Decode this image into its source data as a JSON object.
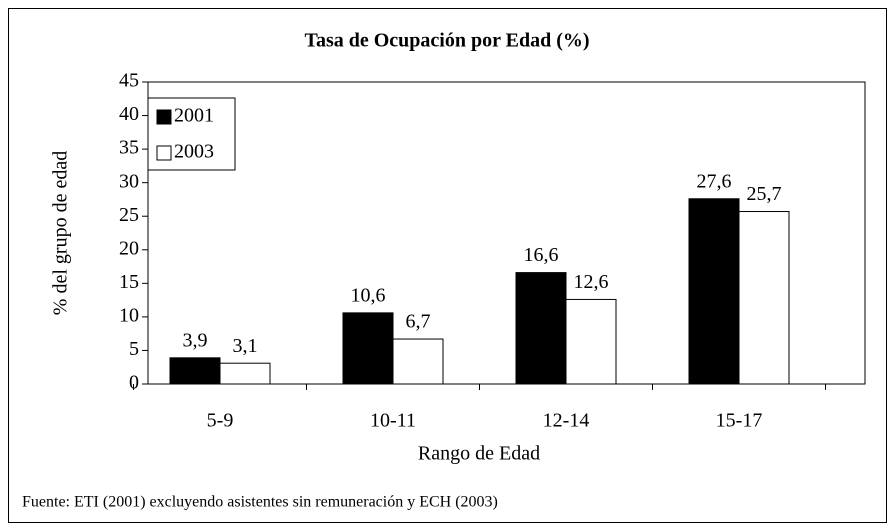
{
  "chart_data": {
    "type": "bar",
    "title": "Tasa de Ocupación por Edad (%)",
    "x_label": "Rango de Edad",
    "y_label": "% del grupo de edad",
    "footnote": "Fuente: ETI (2001) excluyendo asistentes sin remuneración y ECH (2003)",
    "categories": [
      "5-9",
      "10-11",
      "12-14",
      "15-17"
    ],
    "series": [
      {
        "name": "2001",
        "color": "#000000",
        "values": [
          3.9,
          10.6,
          16.6,
          27.6
        ],
        "value_labels": [
          "3,9",
          "10,6",
          "16,6",
          "27,6"
        ]
      },
      {
        "name": "2003",
        "color": "#ffffff",
        "values": [
          3.1,
          6.7,
          12.6,
          25.7
        ],
        "value_labels": [
          "3,1",
          "6,7",
          "12,6",
          "25,7"
        ]
      }
    ],
    "ylim": [
      0,
      45
    ],
    "yticks": [
      0,
      5,
      10,
      15,
      20,
      25,
      30,
      35,
      40,
      45
    ],
    "legend": "top-left"
  }
}
